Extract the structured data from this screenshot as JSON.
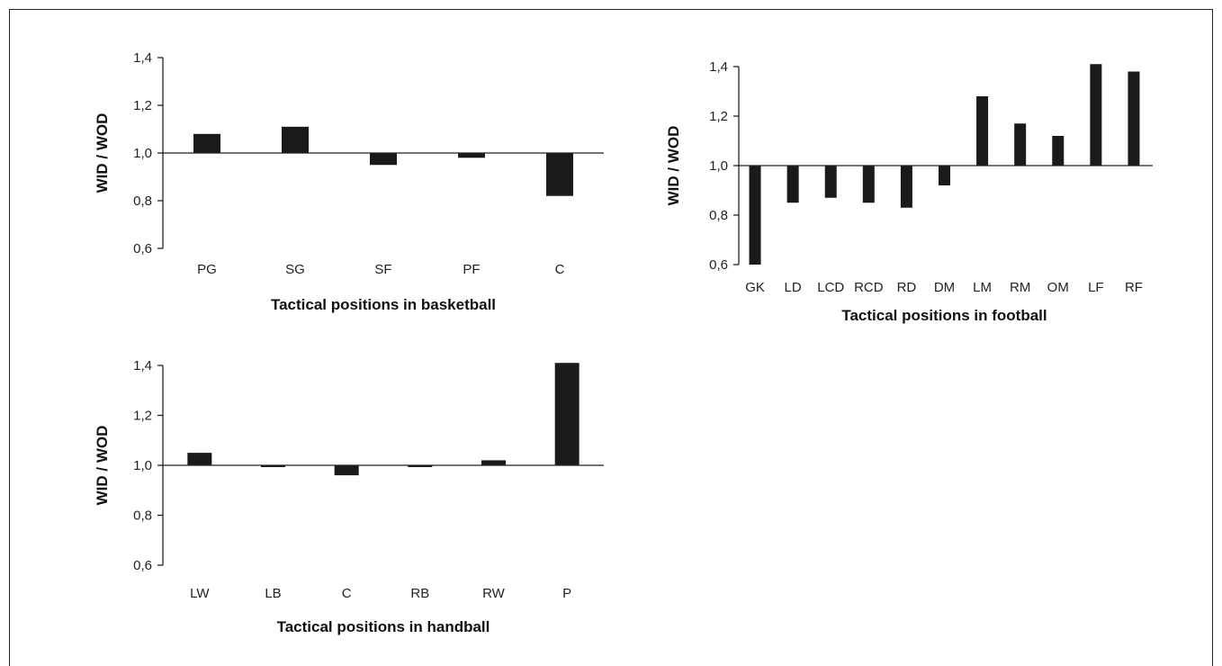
{
  "chart_data": [
    {
      "type": "bar",
      "xlabel": "Tactical positions in basketball",
      "ylabel": "WID / WOD",
      "ylim": [
        0.6,
        1.4
      ],
      "yticks": [
        "0,6",
        "0,8",
        "1,0",
        "1,2",
        "1,4"
      ],
      "baseline": 1.0,
      "categories": [
        "PG",
        "SG",
        "SF",
        "PF",
        "C"
      ],
      "values": [
        1.08,
        1.11,
        0.95,
        0.98,
        0.82
      ],
      "bar_color": "#1a1a1a"
    },
    {
      "type": "bar",
      "xlabel": "Tactical positions in football",
      "ylabel": "WID / WOD",
      "ylim": [
        0.6,
        1.4
      ],
      "yticks": [
        "0,6",
        "0,8",
        "1,0",
        "1,2",
        "1,4"
      ],
      "baseline": 1.0,
      "categories": [
        "GK",
        "LD",
        "LCD",
        "RCD",
        "RD",
        "DM",
        "LM",
        "RM",
        "OM",
        "LF",
        "RF"
      ],
      "values": [
        0.6,
        0.85,
        0.87,
        0.85,
        0.83,
        0.92,
        1.28,
        1.17,
        1.12,
        1.41,
        1.38
      ],
      "bar_color": "#1a1a1a"
    },
    {
      "type": "bar",
      "xlabel": "Tactical positions in handball",
      "ylabel": "WID / WOD",
      "ylim": [
        0.6,
        1.4
      ],
      "yticks": [
        "0,6",
        "0,8",
        "1,0",
        "1,2",
        "1,4"
      ],
      "baseline": 1.0,
      "categories": [
        "LW",
        "LB",
        "C",
        "RB",
        "RW",
        "P"
      ],
      "values": [
        1.05,
        1.0,
        0.96,
        0.995,
        1.02,
        1.41
      ],
      "bar_color": "#1a1a1a"
    }
  ]
}
